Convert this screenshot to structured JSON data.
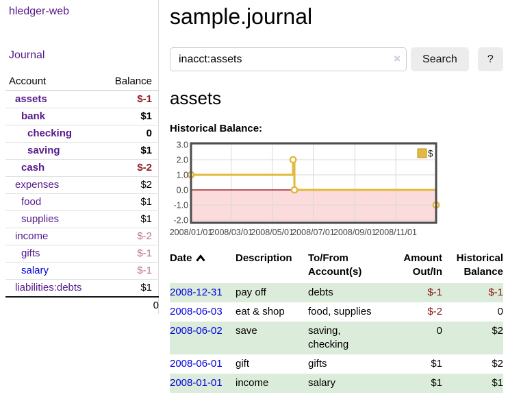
{
  "colors": {
    "link_purple": "#551a8b",
    "link_blue": "#0000dd",
    "negative_strong": "#911c28",
    "negative_soft": "#bd717e",
    "negative_register": "#8b1414",
    "row_green": "#dcecda",
    "button_bg": "#ececec",
    "chart_line": "#e3b83e",
    "chart_negative_bg": "#fbdbdb",
    "zero_line": "#8b0000"
  },
  "sidebar": {
    "app_title": "hledger-web",
    "journal_label": "Journal",
    "accounts_table": {
      "headers": {
        "account": "Account",
        "balance": "Balance"
      },
      "rows": [
        {
          "name": "assets",
          "balance": "$-1",
          "depth": 1,
          "bold": true,
          "balance_style": "neg"
        },
        {
          "name": "bank",
          "balance": "$1",
          "depth": 2,
          "bold": true,
          "balance_style": "pos"
        },
        {
          "name": "checking",
          "balance": "0",
          "depth": 3,
          "bold": true,
          "balance_style": "pos"
        },
        {
          "name": "saving",
          "balance": "$1",
          "depth": 3,
          "bold": true,
          "balance_style": "pos"
        },
        {
          "name": "cash",
          "balance": "$-2",
          "depth": 2,
          "bold": true,
          "balance_style": "neg"
        },
        {
          "name": "expenses",
          "balance": "$2",
          "depth": 1,
          "bold": false,
          "balance_style": "pos"
        },
        {
          "name": "food",
          "balance": "$1",
          "depth": 2,
          "bold": false,
          "balance_style": "pos"
        },
        {
          "name": "supplies",
          "balance": "$1",
          "depth": 2,
          "bold": false,
          "balance_style": "pos"
        },
        {
          "name": "income",
          "balance": "$-2",
          "depth": 1,
          "bold": false,
          "balance_style": "negsoft"
        },
        {
          "name": "gifts",
          "balance": "$-1",
          "depth": 2,
          "bold": false,
          "balance_style": "negsoft"
        },
        {
          "name": "salary",
          "balance": "$-1",
          "depth": 2,
          "bold": false,
          "balance_style": "negsoft",
          "link_color": "blue"
        },
        {
          "name": "liabilities:debts",
          "balance": "$1",
          "depth": 1,
          "bold": false,
          "balance_style": "pos"
        }
      ],
      "total": "0"
    }
  },
  "main": {
    "title": "sample.journal",
    "search": {
      "value": "inacct:assets",
      "clear_icon": "×",
      "button_label": "Search",
      "help_label": "?"
    },
    "section_title": "assets",
    "chart_label": "Historical Balance:"
  },
  "chart_data": {
    "type": "line",
    "style": "step-after",
    "title": "Historical Balance",
    "x_range": [
      "2008-01-01",
      "2008-12-31"
    ],
    "ylim": [
      -2.2,
      3.1
    ],
    "y_ticks": [
      "3.0",
      "2.0",
      "1.0",
      "0.0",
      "-1.0",
      "-2.0"
    ],
    "x_ticks": [
      "2008/01/01",
      "2008/03/01",
      "2008/05/01",
      "2008/07/01",
      "2008/09/01",
      "2008/11/01"
    ],
    "grid": true,
    "legend": {
      "label": "$",
      "position": "top-right"
    },
    "series": [
      {
        "name": "$",
        "points": [
          [
            "2008-01-01",
            1
          ],
          [
            "2008-06-01",
            2
          ],
          [
            "2008-06-03",
            0
          ],
          [
            "2008-12-31",
            -1
          ]
        ]
      }
    ]
  },
  "register": {
    "headers": {
      "date": "Date",
      "description": "Description",
      "accounts": "To/From Account(s)",
      "amount": "Amount Out/In",
      "balance": "Historical Balance"
    },
    "sort": {
      "column": "date",
      "direction": "ascending"
    },
    "rows": [
      {
        "date": "2008-12-31",
        "description": "pay off",
        "accounts": "debts",
        "amount": "$-1",
        "amount_negative": true,
        "balance": "$-1",
        "balance_negative": true,
        "shaded": true
      },
      {
        "date": "2008-06-03",
        "description": "eat & shop",
        "accounts": "food, supplies",
        "amount": "$-2",
        "amount_negative": true,
        "balance": "0",
        "balance_negative": false,
        "shaded": false
      },
      {
        "date": "2008-06-02",
        "description": "save",
        "accounts": "saving, checking",
        "amount": "0",
        "amount_negative": false,
        "balance": "$2",
        "balance_negative": false,
        "shaded": true
      },
      {
        "date": "2008-06-01",
        "description": "gift",
        "accounts": "gifts",
        "amount": "$1",
        "amount_negative": false,
        "balance": "$2",
        "balance_negative": false,
        "shaded": false
      },
      {
        "date": "2008-01-01",
        "description": "income",
        "accounts": "salary",
        "amount": "$1",
        "amount_negative": false,
        "balance": "$1",
        "balance_negative": false,
        "shaded": true
      }
    ]
  }
}
